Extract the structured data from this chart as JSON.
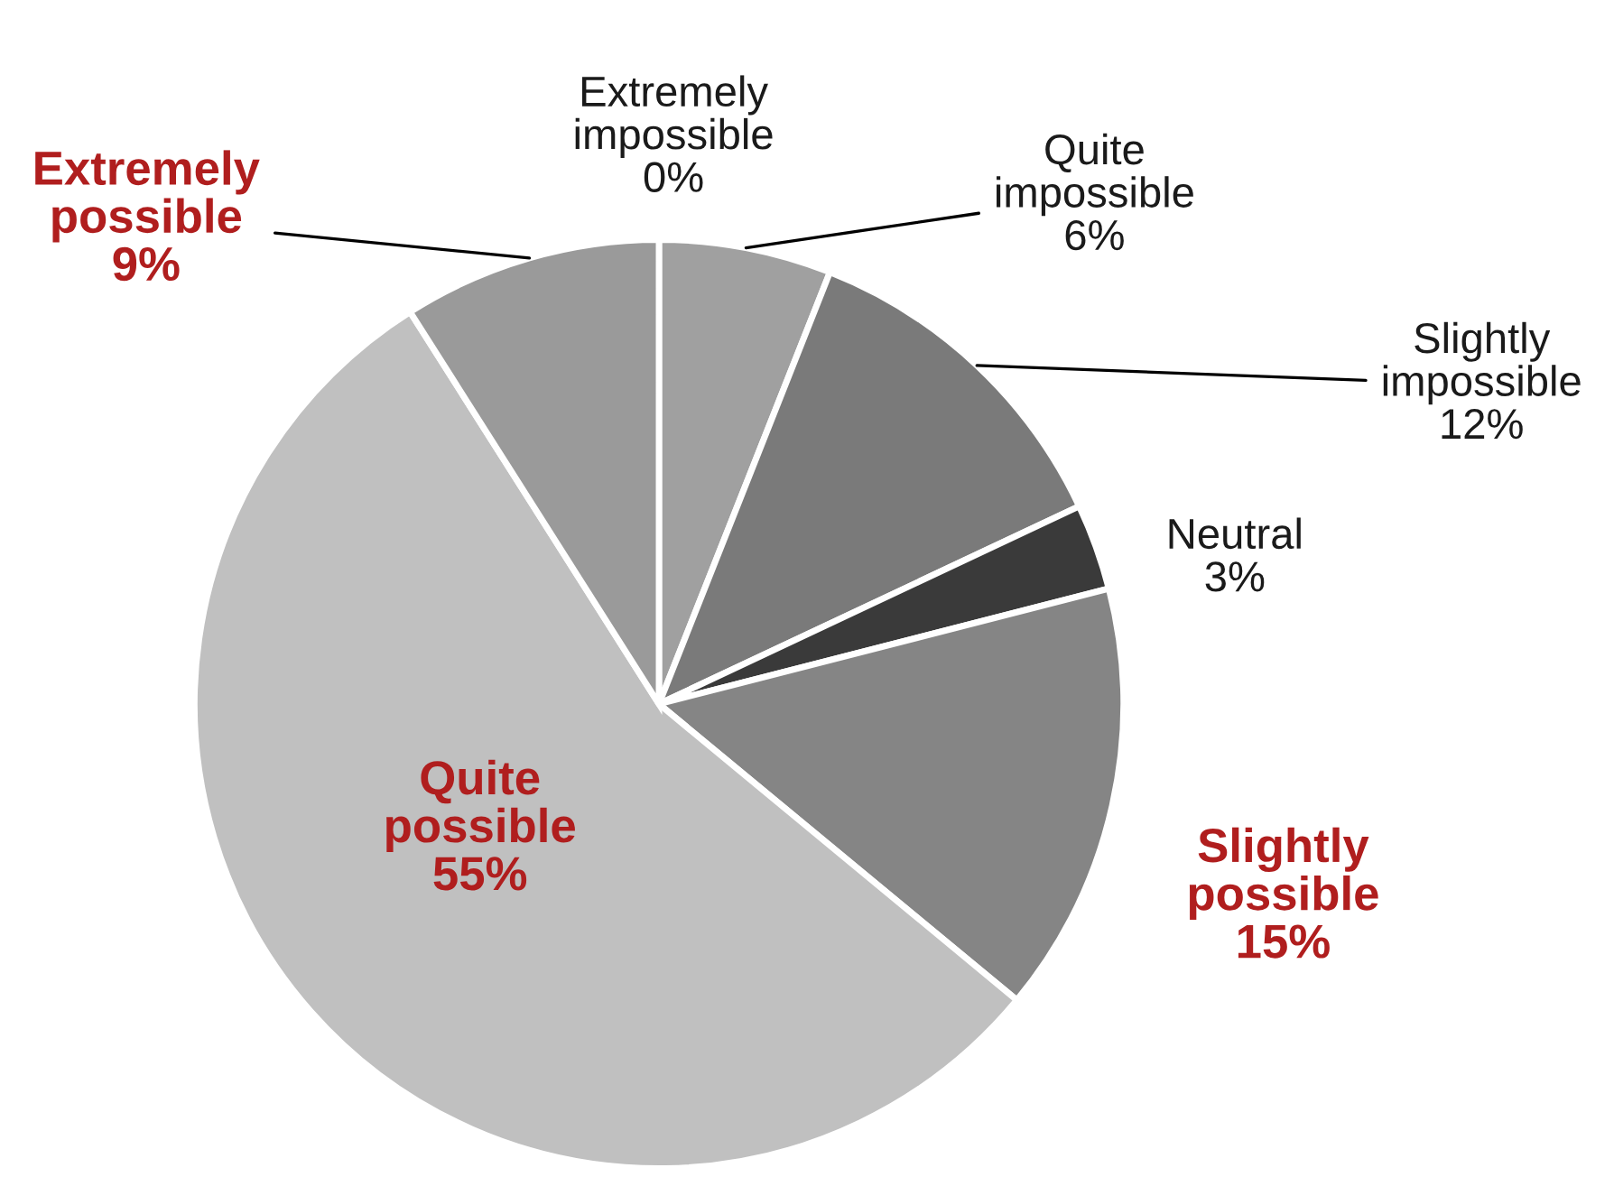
{
  "chart_data": {
    "type": "pie",
    "categories": [
      "Extremely impossible",
      "Quite impossible",
      "Slightly impossible",
      "Neutral",
      "Slightly possible",
      "Quite possible",
      "Extremely possible"
    ],
    "values": [
      0,
      6,
      12,
      3,
      15,
      55,
      9
    ],
    "value_labels": [
      "0%",
      "6%",
      "12%",
      "3%",
      "15%",
      "55%",
      "9%"
    ],
    "colors": [
      "#a6a6a6",
      "#a0a0a0",
      "#7a7a7a",
      "#3a3a3a",
      "#858585",
      "#c0c0c0",
      "#9a9a9a"
    ]
  }
}
